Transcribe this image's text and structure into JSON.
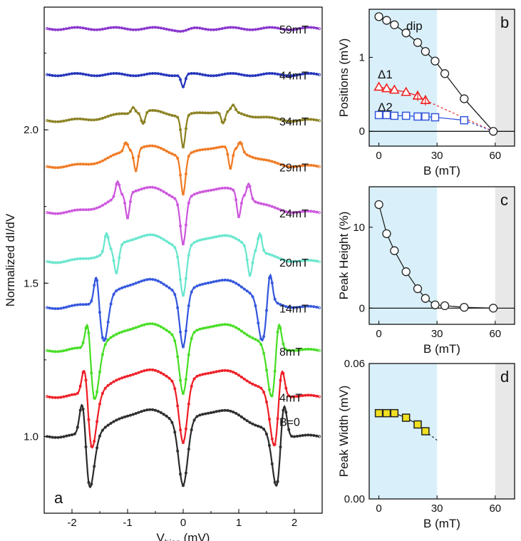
{
  "chart_data": [
    {
      "panel": "a",
      "type": "line",
      "panel_label": "a",
      "xlabel_main": "V",
      "xlabel_sub": "bias",
      "xlabel_unit": " (mV)",
      "ylabel": "Normalized dI/dV",
      "xlim": [
        -2.5,
        2.5
      ],
      "ylim": [
        0.75,
        2.4
      ],
      "xticks": [
        -2,
        -1,
        0,
        1,
        2
      ],
      "xtick_labels": [
        "-2",
        "-1",
        "0",
        "1",
        "2"
      ],
      "yticks": [
        1.0,
        1.5,
        2.0
      ],
      "ytick_labels": [
        "1.0",
        "1.5",
        "2.0"
      ],
      "series": [
        {
          "name": "B=0",
          "label": "B=0",
          "color": "#2a2a2a",
          "offset": 1.0,
          "dip": 0.115,
          "dh": 0.2,
          "gap": 1.62,
          "gapc": 1.7,
          "gapw": 0.13,
          "gapdepth": 0.2,
          "ph": 0.19,
          "pw": 0.08,
          "dome": 0.085
        },
        {
          "name": "4mT",
          "label": "4mT",
          "color": "#ee1c24",
          "offset": 1.13,
          "dip": 0.105,
          "dh": 0.19,
          "gap": 1.58,
          "gapc": 1.66,
          "gapw": 0.13,
          "gapdepth": 0.2,
          "ph": 0.17,
          "pw": 0.08,
          "dome": 0.085
        },
        {
          "name": "8mT",
          "label": "8mT",
          "color": "#44dd22",
          "offset": 1.28,
          "dip": 0.1,
          "dh": 0.18,
          "gap": 1.53,
          "gapc": 1.6,
          "gapw": 0.12,
          "gapdepth": 0.18,
          "ph": 0.14,
          "pw": 0.07,
          "dome": 0.085
        },
        {
          "name": "14mT",
          "label": "14mT",
          "color": "#3355dd",
          "offset": 1.42,
          "dip": 0.09,
          "dh": 0.17,
          "gap": 1.38,
          "gapc": 1.42,
          "gapw": 0.1,
          "gapdepth": 0.14,
          "ph": 0.1,
          "pw": 0.06,
          "dome": 0.09
        },
        {
          "name": "20mT",
          "label": "20mT",
          "color": "#66e6cc",
          "offset": 1.57,
          "dip": 0.08,
          "dh": 0.15,
          "gap": 1.2,
          "gapc": 1.2,
          "gapw": 0.06,
          "gapdepth": 0.09,
          "ph": 0.06,
          "pw": 0.05,
          "dome": 0.085
        },
        {
          "name": "24mT",
          "label": "24mT",
          "color": "#cc55dd",
          "offset": 1.73,
          "dip": 0.07,
          "dh": 0.14,
          "gap": 1.0,
          "gapc": 1.0,
          "gapw": 0.05,
          "gapdepth": 0.08,
          "ph": 0.05,
          "pw": 0.05,
          "dome": 0.08
        },
        {
          "name": "29mT",
          "label": "29mT",
          "color": "#f07820",
          "offset": 1.88,
          "dip": 0.06,
          "dh": 0.12,
          "gap": 0.85,
          "gapc": 0.85,
          "gapw": 0.05,
          "gapdepth": 0.07,
          "ph": 0.03,
          "pw": 0.05,
          "dome": 0.065
        },
        {
          "name": "34mT",
          "label": "34mT",
          "color": "#8a8020",
          "offset": 2.03,
          "dip": 0.055,
          "dh": 0.1,
          "gap": 0.72,
          "gapc": 0.72,
          "gapw": 0.05,
          "gapdepth": 0.04,
          "ph": 0.02,
          "pw": 0.05,
          "dome": 0.03
        },
        {
          "name": "44mT",
          "label": "44mT",
          "color": "#2233bb",
          "offset": 2.18,
          "dip": 0.05,
          "dh": 0.04,
          "gap": 0.0,
          "gapc": 0.0,
          "gapw": 0.05,
          "gapdepth": 0.0,
          "ph": 0.0,
          "pw": 0.05,
          "dome": 0.0
        },
        {
          "name": "59mT",
          "label": "59mT",
          "color": "#8833cc",
          "offset": 2.33,
          "dip": 0.15,
          "dh": 0.008,
          "gap": 0.0,
          "gapc": 0.0,
          "gapw": 0.05,
          "gapdepth": 0.0,
          "ph": 0.0,
          "pw": 0.05,
          "dome": 0.0
        }
      ]
    },
    {
      "panel": "b",
      "type": "scatter",
      "panel_label": "b",
      "xlabel": "B (mT)",
      "ylabel": "Positions (mV)",
      "xlim": [
        -5,
        70
      ],
      "ylim": [
        -0.2,
        1.65
      ],
      "xticks": [
        0,
        30,
        60
      ],
      "xtick_labels": [
        "0",
        "30",
        "60"
      ],
      "yticks": [
        0,
        1
      ],
      "ytick_labels": [
        "0",
        "1"
      ],
      "shaded_regions": [
        {
          "from": -5,
          "to": 30,
          "color": "#d9f0fa"
        },
        {
          "from": 60,
          "to": 70,
          "color": "#e8e8e8"
        }
      ],
      "series": [
        {
          "name": "dip",
          "label": "dip",
          "marker": "circle",
          "color": "#222222",
          "fill": "#ffffff",
          "x": [
            0,
            4,
            8,
            14,
            20,
            24,
            29,
            34,
            44,
            59
          ],
          "y": [
            1.55,
            1.5,
            1.44,
            1.33,
            1.2,
            1.08,
            0.95,
            0.78,
            0.44,
            0.0
          ]
        },
        {
          "name": "Δ1",
          "label": "Δ1",
          "marker": "triangle",
          "color": "#ee2222",
          "fill": "#ffffff",
          "x": [
            0,
            4,
            8,
            14,
            20,
            24
          ],
          "y": [
            0.6,
            0.58,
            0.56,
            0.53,
            0.48,
            0.42
          ]
        },
        {
          "name": "Δ2",
          "label": "Δ2",
          "marker": "square",
          "color": "#3355dd",
          "fill": "#ffffff",
          "x": [
            0,
            4,
            8,
            14,
            20,
            24,
            29,
            44
          ],
          "y": [
            0.22,
            0.22,
            0.21,
            0.21,
            0.2,
            0.2,
            0.19,
            0.15
          ]
        }
      ]
    },
    {
      "panel": "c",
      "type": "scatter",
      "panel_label": "c",
      "xlabel": "B (mT)",
      "ylabel": "Peak Height (%)",
      "xlim": [
        -5,
        70
      ],
      "ylim": [
        -2,
        15
      ],
      "xticks": [
        0,
        30,
        60
      ],
      "xtick_labels": [
        "0",
        "30",
        "60"
      ],
      "yticks": [
        0,
        10
      ],
      "ytick_labels": [
        "0",
        "10"
      ],
      "shaded_regions": [
        {
          "from": -5,
          "to": 30,
          "color": "#d9f0fa"
        },
        {
          "from": 60,
          "to": 70,
          "color": "#e8e8e8"
        }
      ],
      "series": [
        {
          "name": "peak height",
          "marker": "circle",
          "color": "#222222",
          "fill": "#ffffff",
          "x": [
            0,
            4,
            8,
            14,
            20,
            24,
            29,
            34,
            44,
            59
          ],
          "y": [
            12.8,
            9.2,
            7.1,
            4.5,
            2.4,
            1.2,
            0.4,
            0.3,
            0.1,
            0.0
          ]
        }
      ]
    },
    {
      "panel": "d",
      "type": "scatter",
      "panel_label": "d",
      "xlabel": "B (mT)",
      "ylabel": "Peak Width (mV)",
      "xlim": [
        -5,
        70
      ],
      "ylim": [
        0,
        0.06
      ],
      "xticks": [
        0,
        30,
        60
      ],
      "xtick_labels": [
        "0",
        "30",
        "60"
      ],
      "yticks": [
        0,
        0.06
      ],
      "ytick_labels": [
        "0.00",
        "0.06"
      ],
      "shaded_regions": [
        {
          "from": -5,
          "to": 30,
          "color": "#d9f0fa"
        },
        {
          "from": 60,
          "to": 70,
          "color": "#e8e8e8"
        }
      ],
      "series": [
        {
          "name": "peak width",
          "marker": "square",
          "color": "#222222",
          "fill": "#f0e020",
          "x": [
            0,
            4,
            8,
            14,
            20,
            24
          ],
          "y": [
            0.038,
            0.038,
            0.038,
            0.036,
            0.033,
            0.03
          ]
        }
      ]
    }
  ]
}
